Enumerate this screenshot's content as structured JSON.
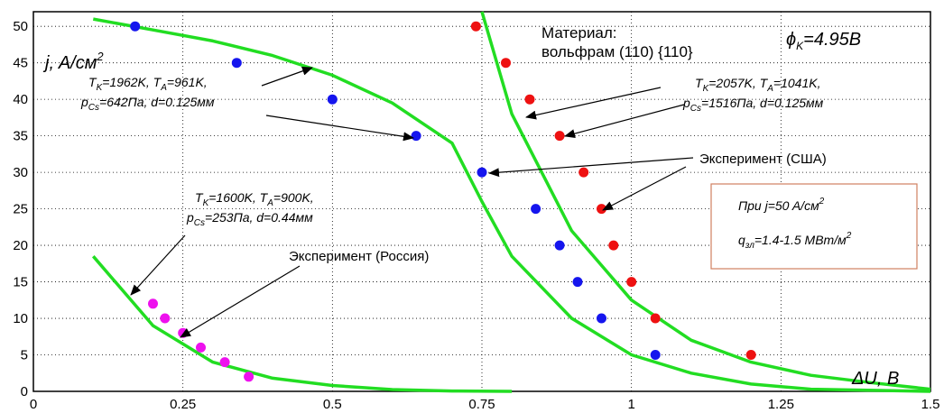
{
  "chart_data": {
    "type": "scatter",
    "xlim": [
      0,
      1.5
    ],
    "ylim": [
      0,
      52
    ],
    "x_ticks": [
      0,
      0.25,
      0.5,
      0.75,
      1,
      1.25,
      1.5
    ],
    "x_tick_labels": [
      "0",
      "0.25",
      "0.5",
      "0.75",
      "1",
      "1.25",
      "1.5"
    ],
    "y_ticks": [
      0,
      5,
      10,
      15,
      20,
      25,
      30,
      35,
      40,
      45,
      50
    ],
    "y_tick_labels": [
      "0",
      "5",
      "10",
      "15",
      "20",
      "25",
      "30",
      "35",
      "40",
      "45",
      "50"
    ],
    "grid": true,
    "xlabel": "ΔU, B",
    "ylabel_main": "j, A/см",
    "ylabel_sup": "2",
    "curves": [
      {
        "color": "#22dd22",
        "points": [
          [
            0.1,
            18.5
          ],
          [
            0.2,
            9
          ],
          [
            0.3,
            4
          ],
          [
            0.4,
            1.8
          ],
          [
            0.5,
            0.8
          ],
          [
            0.6,
            0.25
          ],
          [
            0.7,
            0.05
          ],
          [
            0.8,
            0
          ]
        ]
      },
      {
        "color": "#22dd22",
        "points": [
          [
            0.1,
            51
          ],
          [
            0.2,
            49.5
          ],
          [
            0.3,
            48
          ],
          [
            0.4,
            46
          ],
          [
            0.5,
            43.3
          ],
          [
            0.6,
            39.5
          ],
          [
            0.7,
            34
          ],
          [
            0.75,
            26
          ],
          [
            0.8,
            18.5
          ],
          [
            0.9,
            10
          ],
          [
            1.0,
            5
          ],
          [
            1.1,
            2.5
          ],
          [
            1.2,
            1
          ],
          [
            1.3,
            0.3
          ],
          [
            1.5,
            0
          ]
        ]
      },
      {
        "color": "#22dd22",
        "points": [
          [
            0.75,
            52
          ],
          [
            0.8,
            38
          ],
          [
            0.9,
            22
          ],
          [
            1.0,
            12.5
          ],
          [
            1.1,
            7
          ],
          [
            1.2,
            4
          ],
          [
            1.3,
            2.2
          ],
          [
            1.4,
            1.2
          ],
          [
            1.5,
            0.3
          ]
        ]
      }
    ],
    "series": [
      {
        "color": "#1515ee",
        "points": [
          [
            0.17,
            50
          ],
          [
            0.34,
            45
          ],
          [
            0.5,
            40
          ],
          [
            0.64,
            35
          ],
          [
            0.75,
            30
          ],
          [
            0.84,
            25
          ],
          [
            0.88,
            20
          ],
          [
            0.91,
            15
          ],
          [
            0.95,
            10
          ],
          [
            1.04,
            5
          ]
        ]
      },
      {
        "color": "#ee1111",
        "points": [
          [
            0.74,
            50
          ],
          [
            0.79,
            45
          ],
          [
            0.83,
            40
          ],
          [
            0.88,
            35
          ],
          [
            0.92,
            30
          ],
          [
            0.95,
            25
          ],
          [
            0.97,
            20
          ],
          [
            1.0,
            15
          ],
          [
            1.04,
            10
          ],
          [
            1.2,
            5
          ]
        ]
      },
      {
        "color": "#ee11ee",
        "points": [
          [
            0.2,
            12
          ],
          [
            0.22,
            10
          ],
          [
            0.25,
            8
          ],
          [
            0.28,
            6
          ],
          [
            0.32,
            4
          ],
          [
            0.36,
            2
          ]
        ]
      }
    ]
  },
  "annotations": {
    "material_label": "Материал:",
    "material_value": "вольфрам (110) {110}",
    "phi_main": "ϕ",
    "phi_sub": "K",
    "phi_value": "=4.95B",
    "set1_line1_a": "T",
    "set1_line1_a_sub": "K",
    "set1_line1_b": "=1962K, T",
    "set1_line1_b_sub": "A",
    "set1_line1_c": "=961K,",
    "set1_line2_a": "p",
    "set1_line2_a_sub": "Cs",
    "set1_line2_b": "=642Па, d=0.125мм",
    "set2_line1_a": "T",
    "set2_line1_a_sub": "K",
    "set2_line1_b": "=2057K, T",
    "set2_line1_b_sub": "A",
    "set2_line1_c": "=1041K,",
    "set2_line2_a": "p",
    "set2_line2_a_sub": "Cs",
    "set2_line2_b": "=1516Па, d=0.125мм",
    "set3_line1_a": "T",
    "set3_line1_a_sub": "K",
    "set3_line1_b": "=1600K, T",
    "set3_line1_b_sub": "A",
    "set3_line1_c": "=900K,",
    "set3_line2_a": "p",
    "set3_line2_a_sub": "Cs",
    "set3_line2_b": "=253Па, d=0.44мм",
    "exp_usa": "Эксперимент  (США)",
    "exp_russia": "Эксперимент (Россия)",
    "box_line1_main": "При j=50 A/см",
    "box_line1_sup": "2",
    "box_line2_a": "q",
    "box_line2_a_sub": "зл",
    "box_line2_b": "=1.4-1.5 МВт/м",
    "box_line2_sup": "2",
    "box_border_color": "#d08060"
  }
}
